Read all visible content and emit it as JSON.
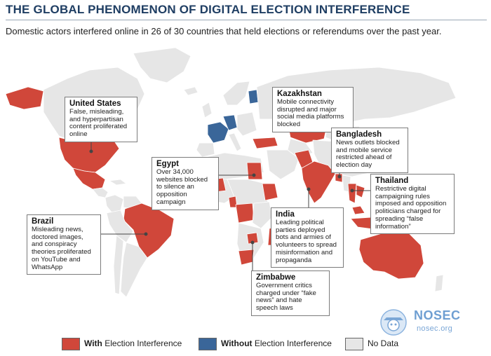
{
  "header": {
    "title": "THE GLOBAL PHENOMENON OF DIGITAL ELECTION INTERFERENCE",
    "subtitle": "Domestic actors interfered online in 26 of 30 countries that held elections or referendums over the past year."
  },
  "colors": {
    "with_interference": "#d0473a",
    "without_interference": "#3a6699",
    "no_data": "#e6e6e6",
    "title": "#1f3e63"
  },
  "callouts": [
    {
      "id": "us",
      "title": "United States",
      "text": "False, misleading, and hyperpartisan content proliferated online"
    },
    {
      "id": "kazakhstan",
      "title": "Kazakhstan",
      "text": "Mobile connectivity disrupted and major social media platforms blocked"
    },
    {
      "id": "bangladesh",
      "title": "Bangladesh",
      "text": "News outlets blocked and mobile service restricted ahead of election day"
    },
    {
      "id": "egypt",
      "title": "Egypt",
      "text": "Over 34,000 websites blocked to silence an opposition campaign"
    },
    {
      "id": "thailand",
      "title": "Thailand",
      "text": "Restrictive digital campaigning rules imposed and opposition politicians charged for spreading “false information”"
    },
    {
      "id": "brazil",
      "title": "Brazil",
      "text": "Misleading news, doctored images, and conspiracy theories proliferated on YouTube and WhatsApp"
    },
    {
      "id": "india",
      "title": "India",
      "text": "Leading political parties deployed bots and armies of volunteers to spread misinformation and propaganda"
    },
    {
      "id": "zimbabwe",
      "title": "Zimbabwe",
      "text": "Government critics charged under “fake news” and hate speech laws"
    }
  ],
  "legend": {
    "with_bold": "With",
    "with_rest": "Election Interference",
    "without_bold": "Without",
    "without_rest": "Election Interference",
    "no_data": "No Data"
  },
  "watermark": {
    "name": "NOSEC",
    "url": "nosec.org"
  }
}
